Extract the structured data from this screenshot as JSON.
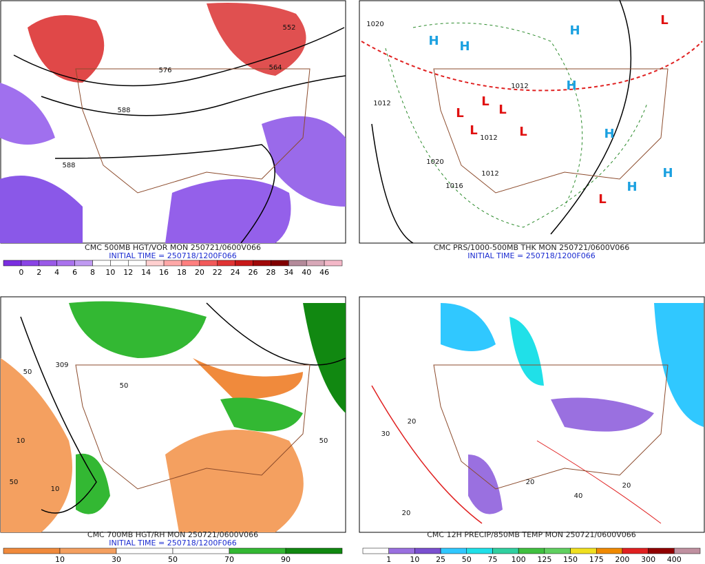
{
  "panels": [
    {
      "caption": "CMC 500MB HGT/VOR MON 250721/0600V066",
      "initial_time": "INITIAL TIME = 250718/1200F066",
      "colorbar": {
        "labels": [
          0,
          2,
          4,
          6,
          8,
          10,
          12,
          14,
          16,
          18,
          20,
          22,
          24,
          26,
          28,
          34,
          40,
          46
        ],
        "colors": [
          "#7a2ee0",
          "#8a44e6",
          "#9a5ae8",
          "#aa72ee",
          "#c09af2",
          "#ffffff",
          "#ffffff",
          "#ffffff",
          "#ffd0d0",
          "#ffa8a8",
          "#ff8080",
          "#f25a5a",
          "#e03434",
          "#c81818",
          "#a00808",
          "#800000",
          "#b48a9a",
          "#d8a8b8",
          "#f4b8c8"
        ]
      },
      "map_labels": [
        "552",
        "564",
        "576",
        "588",
        "588"
      ]
    },
    {
      "caption": "CMC PRS/1000-500MB THK MON 250721/0600V066",
      "initial_time": "INITIAL TIME = 250718/1200F066",
      "map_labels": [
        "H",
        "H",
        "H",
        "H",
        "H",
        "H",
        "H",
        "L",
        "L",
        "L",
        "L",
        "L",
        "L",
        "L",
        "1020",
        "1020",
        "1012",
        "1012",
        "1012",
        "1012",
        "1016"
      ]
    },
    {
      "caption": "CMC 700MB HGT/RH MON 250721/0600V066",
      "initial_time": "INITIAL TIME = 250718/1200F066",
      "colorbar": {
        "labels": [
          10,
          30,
          50,
          70,
          90
        ],
        "colors": [
          "#f08a3c",
          "#f4a060",
          "#ffffff",
          "#ffffff",
          "#33b833",
          "#118811"
        ]
      },
      "map_labels": [
        "309",
        "50",
        "50",
        "50",
        "10",
        "10",
        "50"
      ]
    },
    {
      "caption": "CMC 12H PRECIP/850MB TEMP MON 250721/0600V066",
      "colorbar": {
        "labels": [
          1,
          10,
          25,
          50,
          75,
          100,
          125,
          150,
          175,
          200,
          300,
          400
        ],
        "colors": [
          "#ffffff",
          "#9a70e0",
          "#7a50d0",
          "#30c8ff",
          "#20e0e8",
          "#30d0a0",
          "#40c040",
          "#60d060",
          "#f0e020",
          "#f08a00",
          "#e02020",
          "#900000",
          "#c090a0"
        ]
      },
      "map_labels": [
        "20",
        "20",
        "20",
        "40",
        "30",
        "20"
      ]
    }
  ]
}
